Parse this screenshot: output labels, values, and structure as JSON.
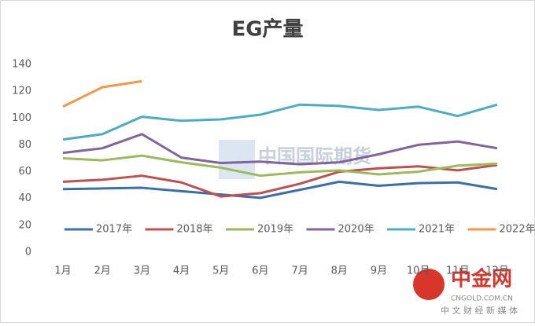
{
  "chart_data": {
    "type": "line",
    "title": "EG产量",
    "categories": [
      "1月",
      "2月",
      "3月",
      "4月",
      "5月",
      "6月",
      "7月",
      "8月",
      "9月",
      "10月",
      "11月",
      "12月"
    ],
    "series": [
      {
        "name": "2017年",
        "color": "#3a6faf",
        "values": [
          47,
          47.5,
          48,
          45.5,
          43,
          40.5,
          46.5,
          52.5,
          49.5,
          51.5,
          52,
          47
        ]
      },
      {
        "name": "2018年",
        "color": "#c0504d",
        "values": [
          52.5,
          54,
          57,
          52,
          41.5,
          44,
          51,
          60,
          62.5,
          64,
          61,
          65
        ]
      },
      {
        "name": "2019年",
        "color": "#9bbb59",
        "values": [
          70,
          68.5,
          72,
          67,
          63,
          57,
          59.5,
          61,
          58,
          60,
          64.5,
          66
        ]
      },
      {
        "name": "2020年",
        "color": "#8064a2",
        "values": [
          74,
          77.5,
          88,
          70.5,
          66.5,
          67.5,
          65.5,
          67,
          73,
          80,
          82.5,
          77.5
        ]
      },
      {
        "name": "2021年",
        "color": "#4bacc6",
        "values": [
          84,
          88,
          101,
          98,
          99,
          102.5,
          110,
          109,
          106,
          108.5,
          101.5,
          110
        ]
      },
      {
        "name": "2022年",
        "color": "#f79646",
        "values": [
          108.5,
          123,
          127.5,
          null,
          null,
          null,
          null,
          null,
          null,
          null,
          null,
          null
        ]
      }
    ],
    "ylim": [
      0,
      140
    ],
    "yticks": [
      0,
      20,
      40,
      60,
      80,
      100,
      120,
      140
    ],
    "grid": false,
    "legend": "bottom-inside"
  },
  "watermarks": [
    "中国国际期货",
    "中金网",
    "CNGOLD.COM.CN",
    "中 文 财 经 新 媒 体"
  ]
}
